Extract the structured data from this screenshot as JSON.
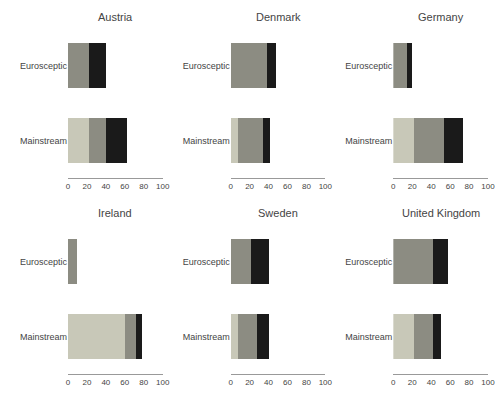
{
  "chart_data": [
    {
      "type": "bar",
      "title": "Austria",
      "orientation": "horizontal",
      "stacked": true,
      "grid": true,
      "categories": [
        "Mainstream",
        "Eurosceptic"
      ],
      "series": [
        {
          "color": "#c8c8b8",
          "values": [
            22,
            0
          ]
        },
        {
          "color": "#8c8c82",
          "values": [
            18,
            22
          ]
        },
        {
          "color": "#1a1a1a",
          "values": [
            22,
            18
          ]
        }
      ],
      "xlim": [
        0,
        100
      ],
      "xticks": [
        0,
        20,
        40,
        60,
        80,
        100
      ]
    },
    {
      "type": "bar",
      "title": "Denmark",
      "orientation": "horizontal",
      "stacked": true,
      "grid": true,
      "categories": [
        "Mainstream",
        "Eurosceptic"
      ],
      "series": [
        {
          "color": "#c8c8b8",
          "values": [
            8,
            0
          ]
        },
        {
          "color": "#8c8c82",
          "values": [
            26,
            38
          ]
        },
        {
          "color": "#1a1a1a",
          "values": [
            8,
            10
          ]
        }
      ],
      "xlim": [
        0,
        100
      ],
      "xticks": [
        0,
        20,
        40,
        60,
        80,
        100
      ]
    },
    {
      "type": "bar",
      "title": "Germany",
      "orientation": "horizontal",
      "stacked": true,
      "grid": true,
      "categories": [
        "Mainstream",
        "Eurosceptic"
      ],
      "series": [
        {
          "color": "#c8c8b8",
          "values": [
            22,
            0
          ]
        },
        {
          "color": "#8c8c82",
          "values": [
            32,
            14
          ]
        },
        {
          "color": "#1a1a1a",
          "values": [
            20,
            6
          ]
        }
      ],
      "xlim": [
        0,
        100
      ],
      "xticks": [
        0,
        20,
        40,
        60,
        80,
        100
      ]
    },
    {
      "type": "bar",
      "title": "Ireland",
      "orientation": "horizontal",
      "stacked": true,
      "grid": true,
      "categories": [
        "Mainstream",
        "Eurosceptic"
      ],
      "series": [
        {
          "color": "#c8c8b8",
          "values": [
            60,
            0
          ]
        },
        {
          "color": "#8c8c82",
          "values": [
            12,
            10
          ]
        },
        {
          "color": "#1a1a1a",
          "values": [
            6,
            0
          ]
        }
      ],
      "xlim": [
        0,
        100
      ],
      "xticks": [
        0,
        20,
        40,
        60,
        80,
        100
      ]
    },
    {
      "type": "bar",
      "title": "Sweden",
      "orientation": "horizontal",
      "stacked": true,
      "grid": true,
      "categories": [
        "Mainstream",
        "Eurosceptic"
      ],
      "series": [
        {
          "color": "#c8c8b8",
          "values": [
            8,
            0
          ]
        },
        {
          "color": "#8c8c82",
          "values": [
            20,
            22
          ]
        },
        {
          "color": "#1a1a1a",
          "values": [
            12,
            18
          ]
        }
      ],
      "xlim": [
        0,
        100
      ],
      "xticks": [
        0,
        20,
        40,
        60,
        80,
        100
      ]
    },
    {
      "type": "bar",
      "title": "United Kingdom",
      "orientation": "horizontal",
      "stacked": true,
      "grid": true,
      "categories": [
        "Mainstream",
        "Eurosceptic"
      ],
      "series": [
        {
          "color": "#c8c8b8",
          "values": [
            22,
            0
          ]
        },
        {
          "color": "#8c8c82",
          "values": [
            20,
            42
          ]
        },
        {
          "color": "#1a1a1a",
          "values": [
            8,
            16
          ]
        }
      ],
      "xlim": [
        0,
        100
      ],
      "xticks": [
        0,
        20,
        40,
        60,
        80,
        100
      ]
    }
  ]
}
